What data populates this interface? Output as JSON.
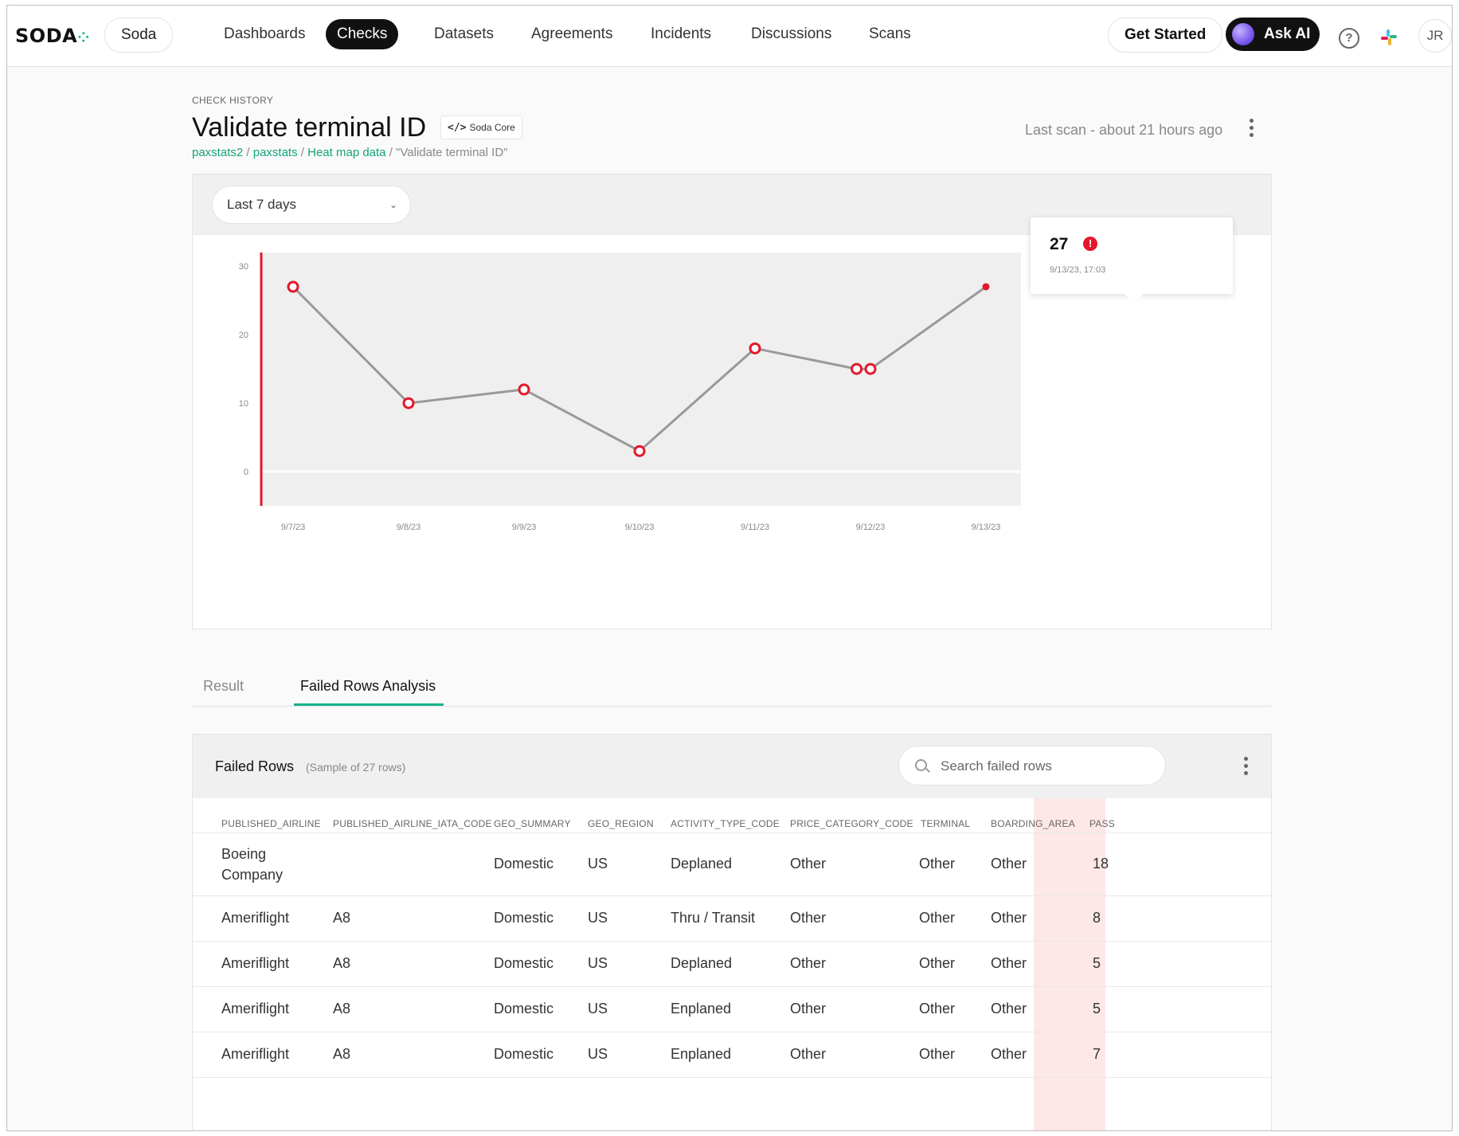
{
  "nav": {
    "logo": "SODA",
    "org": "Soda",
    "items": [
      "Dashboards",
      "Checks",
      "Datasets",
      "Agreements",
      "Incidents",
      "Discussions",
      "Scans"
    ],
    "get_started": "Get Started",
    "ask_ai": "Ask AI",
    "help": "?",
    "avatar": "JR"
  },
  "header": {
    "overline": "CHECK HISTORY",
    "title": "Validate terminal ID",
    "tag": "Soda Core",
    "breadcrumb": [
      "paxstats2",
      "paxstats",
      "Heat map data",
      "\"Validate terminal ID\""
    ],
    "last_scan": "Last scan - about 21 hours ago"
  },
  "filter": {
    "range": "Last 7 days"
  },
  "chart_data": {
    "type": "line",
    "x": [
      "9/7/23",
      "9/8/23",
      "9/9/23",
      "9/10/23",
      "9/11/23",
      "9/12/23",
      "9/12/23",
      "9/13/23"
    ],
    "x_pos": [
      0,
      1,
      2,
      3,
      4,
      4.88,
      5,
      6
    ],
    "values": [
      27,
      10,
      12,
      3,
      18,
      15,
      15,
      27
    ],
    "categories": [
      "9/7/23",
      "9/8/23",
      "9/9/23",
      "9/10/23",
      "9/11/23",
      "9/12/23",
      "9/13/23"
    ],
    "yticks": [
      0,
      10,
      20,
      30
    ],
    "ylim": [
      -5,
      32
    ],
    "xlabel": "",
    "ylabel": "",
    "title": "",
    "line_color": "#999999",
    "point_color": "#e3192b",
    "tooltip": {
      "value": "27",
      "time": "9/13/23, 17:03"
    }
  },
  "tabs": [
    "Result",
    "Failed Rows Analysis"
  ],
  "failed_rows": {
    "title": "Failed Rows",
    "subtitle": "(Sample of 27 rows)",
    "search_placeholder": "Search failed rows",
    "columns": [
      "PUBLISHED_AIRLINE",
      "PUBLISHED_AIRLINE_IATA_CODE",
      "GEO_SUMMARY",
      "GEO_REGION",
      "ACTIVITY_TYPE_CODE",
      "PRICE_CATEGORY_CODE",
      "TERMINAL",
      "BOARDING_AREA",
      "PASS"
    ],
    "rows": [
      [
        "Boeing Company",
        "",
        "Domestic",
        "US",
        "Deplaned",
        "Other",
        "Other",
        "Other",
        "18"
      ],
      [
        "Ameriflight",
        "A8",
        "Domestic",
        "US",
        "Thru / Transit",
        "Other",
        "Other",
        "Other",
        "8"
      ],
      [
        "Ameriflight",
        "A8",
        "Domestic",
        "US",
        "Deplaned",
        "Other",
        "Other",
        "Other",
        "5"
      ],
      [
        "Ameriflight",
        "A8",
        "Domestic",
        "US",
        "Enplaned",
        "Other",
        "Other",
        "Other",
        "5"
      ],
      [
        "Ameriflight",
        "A8",
        "Domestic",
        "US",
        "Enplaned",
        "Other",
        "Other",
        "Other",
        "7"
      ]
    ]
  }
}
